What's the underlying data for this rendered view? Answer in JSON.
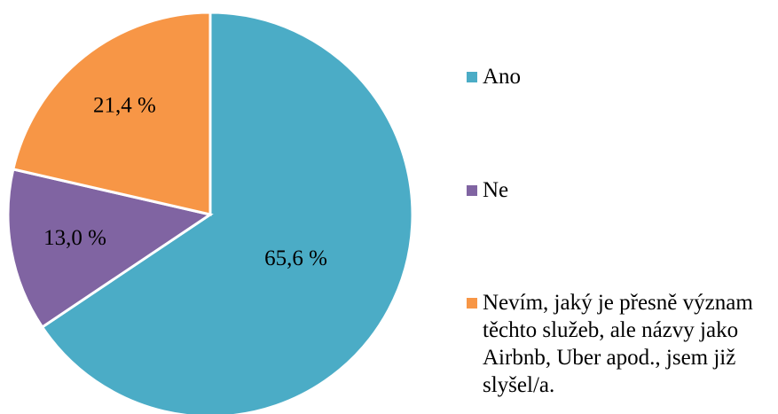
{
  "chart_data": {
    "type": "pie",
    "categories": [
      "Ano",
      "Ne",
      "Nevím, jaký je přesně význam těchto služeb, ale názvy jako Airbnb, Uber apod., jsem již slyšel/a."
    ],
    "values": [
      65.6,
      13.0,
      21.4
    ],
    "value_labels": [
      "65,6 %",
      "13,0 %",
      "21,4 %"
    ],
    "colors": [
      "#4bacc6",
      "#8064a2",
      "#f79646"
    ]
  }
}
